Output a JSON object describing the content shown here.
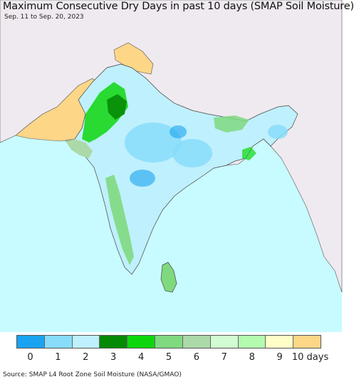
{
  "title": "Maximum Consecutive Dry Days in past 10 days (SMAP Soil Moisture)",
  "subtitle": "Sep. 11 to Sep. 20, 2023",
  "source": "Source: SMAP L4 Root Zone Soil Moisture (NASA/GMAO)",
  "colors": {
    "ocean": "#c8fbff",
    "land_outside": "#efeaf0",
    "border": "#444444"
  },
  "legend": {
    "items": [
      {
        "label": "0",
        "color": "#1aa3f0"
      },
      {
        "label": "1",
        "color": "#86dcfa"
      },
      {
        "label": "2",
        "color": "#bff0fd"
      },
      {
        "label": "3",
        "color": "#058a05"
      },
      {
        "label": "4",
        "color": "#0ed60e"
      },
      {
        "label": "5",
        "color": "#7fd97f"
      },
      {
        "label": "6",
        "color": "#acd9a8"
      },
      {
        "label": "7",
        "color": "#d2fcd2"
      },
      {
        "label": "8",
        "color": "#b3fbae"
      },
      {
        "label": "9",
        "color": "#fefec8"
      },
      {
        "label": "10 days",
        "color": "#fdd688"
      }
    ]
  }
}
